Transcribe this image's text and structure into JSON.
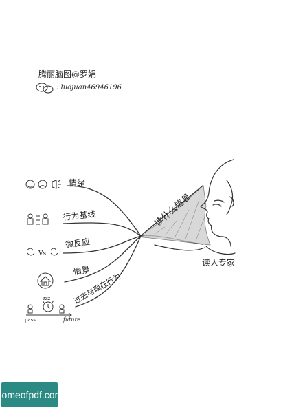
{
  "header": {
    "credit": "腾丽脑图@罗娟",
    "contact": ": luojuan46946196"
  },
  "center": {
    "title": "读什么信息",
    "person_caption": "读人专家"
  },
  "branches": [
    {
      "label": "情绪",
      "icon": "face-emotions-megaphone-icon"
    },
    {
      "label": "行为基线",
      "icon": "people-baseline-icon"
    },
    {
      "label": "微反应",
      "icon": "faces-vs-icon",
      "icon_text": "Vs"
    },
    {
      "label": "情景",
      "icon": "house-circle-icon"
    },
    {
      "label": "过去与现在行为",
      "icon": "alarm-clock-timeline-icon",
      "timeline": {
        "start": "pass",
        "end": "future",
        "zzz": "zzz"
      }
    }
  ],
  "watermark": {
    "text": "homeofpdf.com",
    "color": "#2b8b84"
  }
}
